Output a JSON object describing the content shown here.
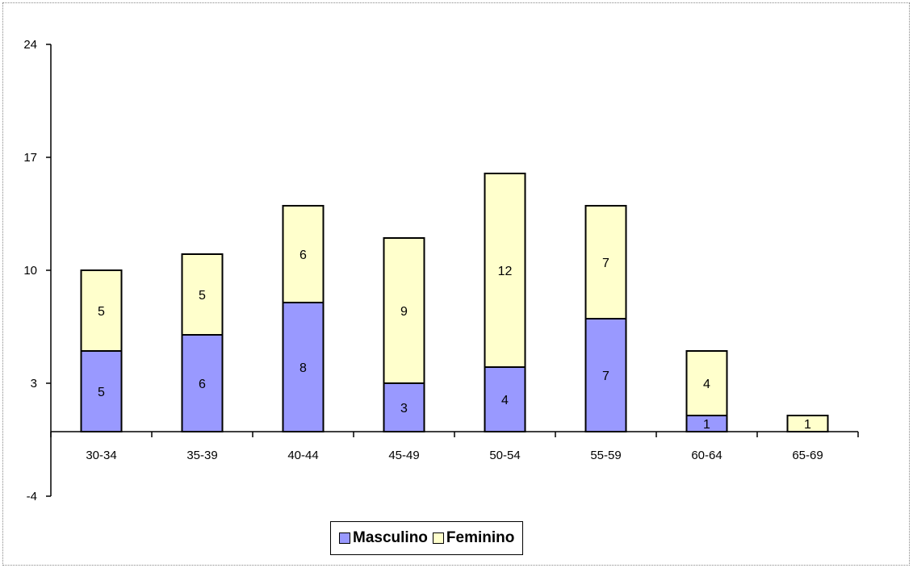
{
  "chart_data": {
    "type": "bar",
    "stacked": true,
    "categories": [
      "30-34",
      "35-39",
      "40-44",
      "45-49",
      "50-54",
      "55-59",
      "60-64",
      "65-69"
    ],
    "series": [
      {
        "name": "Masculino",
        "values": [
          5,
          6,
          8,
          3,
          4,
          7,
          1,
          0
        ],
        "color": "#9999ff"
      },
      {
        "name": "Feminino",
        "values": [
          5,
          5,
          6,
          9,
          12,
          7,
          4,
          1
        ],
        "color": "#ffffcc"
      }
    ],
    "yticks": [
      -4,
      3,
      10,
      17,
      24
    ],
    "ylim": [
      -4,
      24
    ],
    "grid": false,
    "legend": "bottom"
  }
}
